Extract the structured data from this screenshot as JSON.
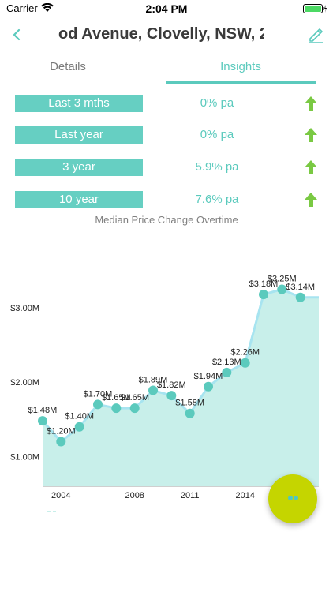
{
  "status_bar": {
    "carrier": "Carrier",
    "time": "2:04 PM"
  },
  "nav": {
    "title": "od Avenue, Clovelly, NSW, 2"
  },
  "tabs": [
    {
      "label": "Details",
      "selected": false
    },
    {
      "label": "Insights",
      "selected": true
    }
  ],
  "stats": [
    {
      "label": "Last 3 mths",
      "value": "0% pa",
      "trend": "up"
    },
    {
      "label": "Last year",
      "value": "0% pa",
      "trend": "up"
    },
    {
      "label": "3 year",
      "value": "5.9% pa",
      "trend": "up"
    },
    {
      "label": "10 year",
      "value": "7.6% pa",
      "trend": "up"
    }
  ],
  "colors": {
    "accent": "#5bcabd",
    "label_bg": "#66cfc2",
    "arrow": "#7ac943",
    "fab": "#c5d500",
    "area": "#c8efea"
  },
  "chart_data": {
    "type": "area",
    "title": "Median Price Change Overtime",
    "x_ticks": [
      "2004",
      "2008",
      "2011",
      "2014"
    ],
    "y_ticks": [
      "$1.00M",
      "$2.00M",
      "$3.00M"
    ],
    "ylim": [
      0.6,
      3.85
    ],
    "x": [
      2003,
      2004,
      2005,
      2006,
      2007,
      2008,
      2009,
      2010,
      2011,
      2012,
      2013,
      2014,
      2015,
      2016,
      2017,
      2018
    ],
    "values": [
      1.48,
      1.2,
      1.4,
      1.7,
      1.65,
      1.65,
      1.89,
      1.82,
      1.58,
      1.94,
      2.13,
      2.26,
      3.18,
      3.25,
      3.14,
      3.14
    ],
    "labels": [
      "$1.48M",
      "$1.20M",
      "$1.40M",
      "$1.70M",
      "$1.65M",
      "$1.65M",
      "$1.89M",
      "$1.82M",
      "$1.58M",
      "$1.94M",
      "$2.13M",
      "$2.26M",
      "$3.18M",
      "$3.25M",
      "$3.14M",
      ""
    ]
  }
}
